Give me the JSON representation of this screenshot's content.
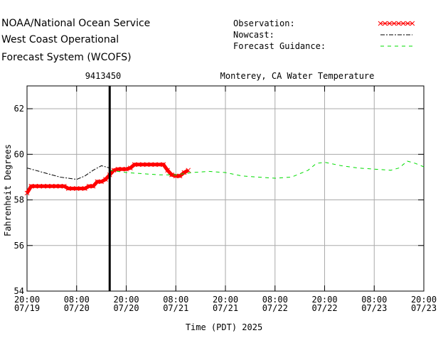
{
  "chart_data": {
    "type": "line",
    "title_lines": [
      "NOAA/National Ocean Service",
      "West Coast Operational",
      "Forecast System (WCOFS)"
    ],
    "station": "9413450",
    "subtitle": "Monterey, CA Water Temperature",
    "ylabel": "Fahrenheit Degrees",
    "xlabel": "Time (PDT) 2025",
    "xlim": [
      0,
      96
    ],
    "ylim": [
      54,
      63
    ],
    "xticks": [
      {
        "value": 0,
        "label": "20:00 07/19"
      },
      {
        "value": 12,
        "label": "08:00 07/20"
      },
      {
        "value": 24,
        "label": "20:00 07/20"
      },
      {
        "value": 36,
        "label": "08:00 07/21"
      },
      {
        "value": 48,
        "label": "20:00 07/21"
      },
      {
        "value": 60,
        "label": "08:00 07/22"
      },
      {
        "value": 72,
        "label": "20:00 07/22"
      },
      {
        "value": 84,
        "label": "08:00 07/23"
      },
      {
        "value": 96,
        "label": "20:00 07/23"
      }
    ],
    "yticks": [
      54,
      56,
      58,
      60,
      62
    ],
    "grid": true,
    "now_x": 20,
    "series": [
      {
        "name": "Observation:",
        "color": "#ff0000",
        "style": "marker",
        "x": [
          0,
          1,
          2,
          3,
          4,
          5,
          6,
          7,
          8,
          9,
          10,
          11,
          12,
          13,
          14,
          15,
          16,
          17,
          18,
          19,
          20,
          21,
          22,
          23,
          24,
          25,
          26,
          27,
          28,
          29,
          30,
          31,
          32,
          33,
          34,
          35,
          36,
          37,
          38,
          39
        ],
        "values": [
          58.3,
          58.6,
          58.6,
          58.6,
          58.6,
          58.6,
          58.6,
          58.6,
          58.6,
          58.6,
          58.5,
          58.5,
          58.5,
          58.5,
          58.5,
          58.6,
          58.6,
          58.8,
          58.8,
          58.9,
          59.1,
          59.3,
          59.35,
          59.35,
          59.35,
          59.4,
          59.55,
          59.55,
          59.55,
          59.55,
          59.55,
          59.55,
          59.55,
          59.55,
          59.3,
          59.1,
          59.05,
          59.05,
          59.2,
          59.3
        ]
      },
      {
        "name": "Nowcast:",
        "color": "#000000",
        "style": "dashdot",
        "x": [
          0,
          2,
          4,
          6,
          8,
          10,
          12,
          14,
          16,
          18,
          20
        ],
        "values": [
          59.4,
          59.3,
          59.2,
          59.1,
          59.0,
          58.95,
          58.9,
          59.05,
          59.3,
          59.5,
          59.4
        ]
      },
      {
        "name": "Forecast Guidance:",
        "color": "#00dd00",
        "style": "dash",
        "x": [
          20,
          24,
          28,
          32,
          36,
          40,
          44,
          48,
          52,
          56,
          60,
          64,
          68,
          70,
          72,
          76,
          80,
          84,
          88,
          90,
          92,
          94,
          96
        ],
        "values": [
          59.3,
          59.2,
          59.15,
          59.1,
          59.1,
          59.2,
          59.25,
          59.2,
          59.05,
          59.0,
          58.95,
          59.0,
          59.3,
          59.6,
          59.65,
          59.5,
          59.4,
          59.35,
          59.3,
          59.4,
          59.7,
          59.6,
          59.45
        ]
      }
    ]
  }
}
